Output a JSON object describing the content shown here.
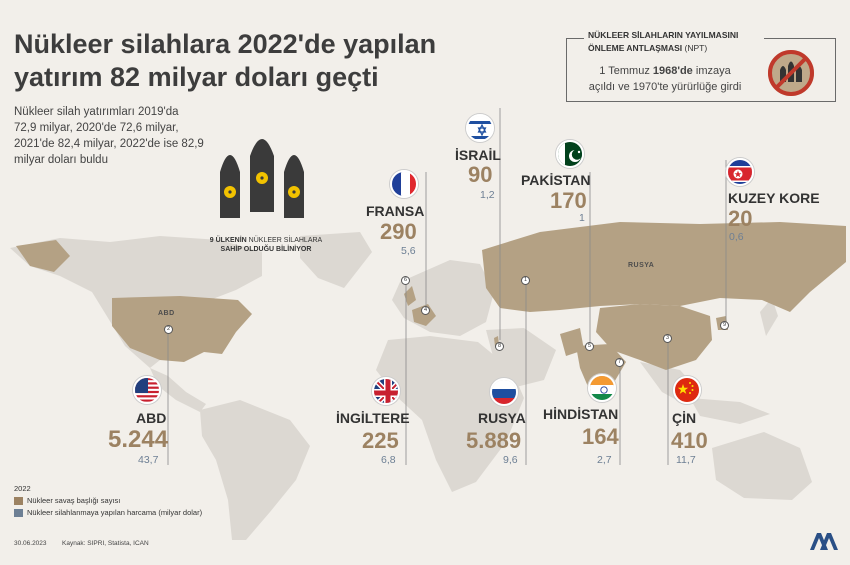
{
  "header": {
    "title_line1": "Nükleer silahlara 2022'de yapılan",
    "title_line2": "yatırım 82 milyar doları geçti",
    "intro": "Nükleer silah yatırımları 2019'da 72,9 milyar, 2020'de 72,6 milyar, 2021'de 82,4 milyar, 2022'de ise 82,9 milyar doları buldu"
  },
  "npt": {
    "title_line1": "NÜKLEER SİLAHLARIN YAYILMASINI",
    "title_line2": "ÖNLEME ANTLAŞMASI",
    "title_suffix": "(NPT)",
    "text_pre": "1 Temmuz ",
    "text_year": "1968'de",
    "text_post": " imzaya",
    "text_line2": "açıldı ve 1970'te yürürlüğe girdi",
    "icon": "no-nuclear-icon"
  },
  "missiles": {
    "icon": "nuclear-missile-icon",
    "caption_bold": "9 ÜLKENİN",
    "caption_rest": " NÜKLEER SİLAHLARA",
    "caption_line2": "SAHİP OLDUĞU BİLİNİYOR"
  },
  "map_labels": {
    "usa": "ABD",
    "russia": "RUSYA"
  },
  "countries": [
    {
      "id": "israel",
      "name": "İSRAİL",
      "heads": "90",
      "spend": "1,2",
      "pin": "8",
      "flag": "israel-flag-icon"
    },
    {
      "id": "pakistan",
      "name": "PAKİSTAN",
      "heads": "170",
      "spend": "1",
      "pin": "5",
      "flag": "pakistan-flag-icon"
    },
    {
      "id": "france",
      "name": "FRANSA",
      "heads": "290",
      "spend": "5,6",
      "pin": "4",
      "flag": "france-flag-icon"
    },
    {
      "id": "north-korea",
      "name": "KUZEY KORE",
      "heads": "20",
      "spend": "0,6",
      "pin": "9",
      "flag": "north-korea-flag-icon"
    },
    {
      "id": "usa",
      "name": "ABD",
      "heads": "5.244",
      "spend": "43,7",
      "pin": "2",
      "flag": "usa-flag-icon"
    },
    {
      "id": "uk",
      "name": "İNGİLTERE",
      "heads": "225",
      "spend": "6,8",
      "pin": "6",
      "flag": "uk-flag-icon"
    },
    {
      "id": "russia",
      "name": "RUSYA",
      "heads": "5.889",
      "spend": "9,6",
      "pin": "1",
      "flag": "russia-flag-icon"
    },
    {
      "id": "india",
      "name": "HİNDİSTAN",
      "heads": "164",
      "spend": "2,7",
      "pin": "7",
      "flag": "india-flag-icon"
    },
    {
      "id": "china",
      "name": "ÇİN",
      "heads": "410",
      "spend": "11,7",
      "pin": "3",
      "flag": "china-flag-icon"
    }
  ],
  "legend": {
    "year": "2022",
    "items": [
      {
        "label": "Nükleer savaş başlığı sayısı",
        "color": "#9c8262"
      },
      {
        "label": "Nükleer silahlanmaya yapılan harcama (milyar dolar)",
        "color": "#6d7f94"
      }
    ]
  },
  "footer": {
    "date": "30.06.2023",
    "source": "Kaynak: SIPRI, Statista, ICAN",
    "logo": "aa-logo-icon"
  },
  "colors": {
    "background": "#f2efea",
    "land": "#dcd8d2",
    "nuclear_land": "#b4a184",
    "heads": "#9c8262",
    "spend": "#6d7f94"
  }
}
